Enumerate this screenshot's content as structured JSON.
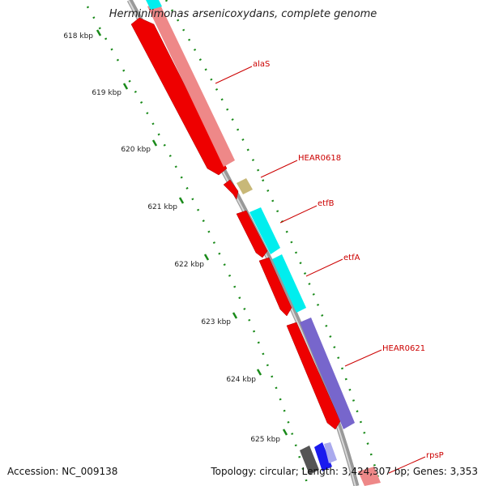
{
  "title": "Herminiimonas arsenicoxydans, complete genome",
  "footer": {
    "accession": "Accession: NC_009138",
    "stats": "Topology: circular; Length: 3,424,307 bp; Genes: 3,353"
  },
  "ruler": {
    "color": "#1a8a1a",
    "labels": [
      "618 kbp",
      "619 kbp",
      "620 kbp",
      "621 kbp",
      "622 kbp",
      "623 kbp",
      "624 kbp",
      "625 kbp"
    ]
  },
  "gene_labels": [
    "alaS",
    "HEAR0618",
    "etfB",
    "etfA",
    "HEAR0621",
    "rpsP"
  ],
  "colors": {
    "label": "#cc0000",
    "backbone": "#888888",
    "red": "#ee0000",
    "salmon": "#ee8888",
    "cyan": "#00eeee",
    "olive": "#c8b878",
    "purple": "#7766cc",
    "blue": "#1a1aee",
    "gray": "#666666"
  }
}
